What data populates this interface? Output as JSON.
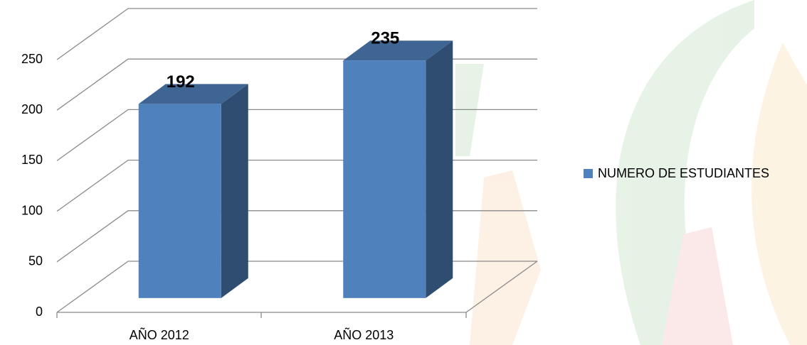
{
  "chart_data": {
    "type": "bar3d",
    "categories": [
      "AÑO 2012",
      "AÑO 2013"
    ],
    "series": [
      {
        "name": "NUMERO DE ESTUDIANTES",
        "color": "#4f81bd",
        "values": [
          192,
          235
        ]
      }
    ],
    "ylim": [
      0,
      250
    ],
    "yticks": [
      0,
      50,
      100,
      150,
      200,
      250
    ],
    "grid": true,
    "legend": "right"
  }
}
